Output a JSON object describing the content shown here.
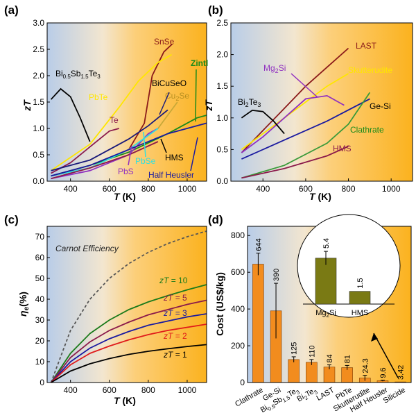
{
  "colors": {
    "bg_left": "#b9cde8",
    "bg_right": "#fbb21e",
    "bar": "#f28c1e",
    "inset_bar": "#7a7a14"
  },
  "chart_data": [
    {
      "panel": "(a)",
      "type": "line",
      "xlabel_var": "T",
      "xlabel_unit": "(K)",
      "ylabel": "zT",
      "xlim": [
        280,
        1100
      ],
      "ylim": [
        0,
        3.0
      ],
      "xticks": [
        "400",
        "600",
        "800",
        "1000"
      ],
      "yticks": [
        "0.0",
        "0.5",
        "1.0",
        "1.5",
        "2.0",
        "2.5",
        "3.0"
      ],
      "series": [
        {
          "name": "SnSe",
          "color": "#8b1a1a",
          "x": [
            300,
            500,
            700,
            780,
            820,
            880,
            923
          ],
          "y": [
            0.1,
            0.25,
            0.6,
            1.1,
            2.0,
            2.45,
            2.6
          ]
        },
        {
          "name": "PbTe",
          "color": "#ffe600",
          "x": [
            300,
            500,
            650,
            750,
            850,
            920
          ],
          "y": [
            0.2,
            0.7,
            1.4,
            1.9,
            2.25,
            2.4
          ]
        },
        {
          "name": "Bi0.5Sb1.5Te3",
          "color": "#000000",
          "x": [
            300,
            350,
            400,
            450,
            500
          ],
          "y": [
            1.55,
            1.75,
            1.6,
            1.2,
            0.75
          ]
        },
        {
          "name": "Te",
          "color": "#8b1a4a",
          "x": [
            300,
            400,
            500,
            600,
            650
          ],
          "y": [
            0.15,
            0.35,
            0.65,
            0.95,
            1.0
          ]
        },
        {
          "name": "BiCuSeO",
          "color": "#1a1a7a",
          "x": [
            300,
            500,
            700,
            800,
            900
          ],
          "y": [
            0.2,
            0.4,
            0.8,
            1.05,
            1.35
          ]
        },
        {
          "name": "Cu2Se",
          "color": "#c8a838",
          "x": [
            300,
            500,
            700,
            850,
            950
          ],
          "y": [
            0.1,
            0.25,
            0.6,
            1.0,
            1.5
          ]
        },
        {
          "name": "Zintl",
          "color": "#1a8a1a",
          "x": [
            300,
            500,
            700,
            900,
            1050,
            1100
          ],
          "y": [
            0.1,
            0.3,
            0.55,
            0.9,
            1.2,
            1.25
          ]
        },
        {
          "name": "PbS",
          "color": "#9030c0",
          "x": [
            300,
            500,
            700,
            800,
            850
          ],
          "y": [
            0.05,
            0.2,
            0.5,
            0.9,
            1.0
          ]
        },
        {
          "name": "PbSe",
          "color": "#30e0e0",
          "x": [
            300,
            500,
            700,
            850
          ],
          "y": [
            0.1,
            0.25,
            0.6,
            1.0
          ]
        },
        {
          "name": "HMS",
          "color": "#8b1a4a",
          "x": [
            300,
            500,
            700,
            850
          ],
          "y": [
            0.05,
            0.25,
            0.5,
            0.75
          ]
        },
        {
          "name": "Half Heusler",
          "color": "#1a1aa0",
          "x": [
            300,
            500,
            700,
            900,
            1100
          ],
          "y": [
            0.1,
            0.3,
            0.6,
            0.9,
            1.1
          ]
        }
      ]
    },
    {
      "panel": "(b)",
      "type": "line",
      "xlabel_var": "T",
      "xlabel_unit": "(K)",
      "ylabel": "zT",
      "xlim": [
        250,
        1100
      ],
      "ylim": [
        0,
        2.5
      ],
      "xticks": [
        "400",
        "600",
        "800",
        "1000"
      ],
      "yticks": [
        "0.0",
        "0.5",
        "1.0",
        "1.5",
        "2.0",
        "2.5"
      ],
      "series": [
        {
          "name": "LAST",
          "color": "#8b1a1a",
          "x": [
            300,
            400,
            500,
            600,
            700,
            800
          ],
          "y": [
            0.45,
            0.8,
            1.15,
            1.5,
            1.8,
            2.1
          ]
        },
        {
          "name": "Skutterudite",
          "color": "#ffe600",
          "x": [
            300,
            400,
            500,
            600,
            700,
            800
          ],
          "y": [
            0.5,
            0.75,
            1.0,
            1.25,
            1.5,
            1.7
          ]
        },
        {
          "name": "Mg2Si",
          "color": "#9030c0",
          "x": [
            300,
            400,
            500,
            600,
            700,
            780
          ],
          "y": [
            0.45,
            0.7,
            1.0,
            1.3,
            1.35,
            1.2
          ]
        },
        {
          "name": "Bi2Te3",
          "color": "#000000",
          "x": [
            300,
            350,
            400,
            450,
            500
          ],
          "y": [
            1.0,
            1.12,
            1.1,
            0.95,
            0.75
          ]
        },
        {
          "name": "Ge-Si",
          "color": "#1a1aa0",
          "x": [
            300,
            500,
            700,
            900
          ],
          "y": [
            0.35,
            0.65,
            0.95,
            1.3
          ]
        },
        {
          "name": "Clathrate",
          "color": "#3a9a3a",
          "x": [
            300,
            500,
            700,
            800,
            900
          ],
          "y": [
            0.05,
            0.25,
            0.6,
            0.9,
            1.4
          ]
        },
        {
          "name": "HMS",
          "color": "#8b1a4a",
          "x": [
            300,
            500,
            700,
            800
          ],
          "y": [
            0.05,
            0.2,
            0.4,
            0.55
          ]
        }
      ]
    },
    {
      "panel": "(c)",
      "type": "line",
      "xlabel_var": "T",
      "xlabel_unit": "(K)",
      "ylabel_var": "η",
      "ylabel_sub": "e",
      "ylabel_unit": "(%)",
      "xlim": [
        280,
        1100
      ],
      "ylim": [
        0,
        75
      ],
      "xticks": [
        "400",
        "600",
        "800",
        "1000"
      ],
      "yticks": [
        "0",
        "10",
        "20",
        "30",
        "40",
        "50",
        "60",
        "70"
      ],
      "carnot_label": "Carnot Efficiency",
      "series": [
        {
          "name": "Carnot",
          "color": "#555555",
          "dashed": true,
          "x": [
            300,
            400,
            500,
            600,
            700,
            800,
            900,
            1000,
            1100
          ],
          "y": [
            0,
            25,
            40,
            50,
            57.1,
            62.5,
            66.7,
            70,
            72.7
          ]
        },
        {
          "name": "zT = 10",
          "color": "#1a7a1a",
          "x": [
            300,
            400,
            500,
            600,
            700,
            800,
            900,
            1000,
            1100
          ],
          "y": [
            0,
            14,
            23.5,
            30,
            35,
            38.7,
            41.7,
            44.5,
            47
          ]
        },
        {
          "name": "zT = 5",
          "color": "#8b1a4a",
          "x": [
            300,
            400,
            500,
            600,
            700,
            800,
            900,
            1000,
            1100
          ],
          "y": [
            0,
            12,
            19.5,
            25,
            29,
            32.5,
            35,
            37.5,
            39.5
          ]
        },
        {
          "name": "zT = 3",
          "color": "#1a1aa0",
          "x": [
            300,
            400,
            500,
            600,
            700,
            800,
            900,
            1000,
            1100
          ],
          "y": [
            0,
            10,
            16.5,
            21,
            24.5,
            27.5,
            29.5,
            31.5,
            33
          ]
        },
        {
          "name": "zT = 2",
          "color": "#e01a1a",
          "x": [
            300,
            400,
            500,
            600,
            700,
            800,
            900,
            1000,
            1100
          ],
          "y": [
            0,
            8.5,
            14,
            17.5,
            20.5,
            23,
            25,
            26.5,
            28
          ]
        },
        {
          "name": "zT = 1",
          "color": "#000000",
          "x": [
            300,
            400,
            500,
            600,
            700,
            800,
            900,
            1000,
            1100
          ],
          "y": [
            0,
            5.5,
            9,
            11.5,
            13.5,
            15,
            16.2,
            17.3,
            18.2
          ]
        }
      ]
    },
    {
      "panel": "(d)",
      "type": "bar",
      "ylabel": "Cost (US$/kg)",
      "ylim": [
        0,
        850
      ],
      "yticks": [
        "0",
        "200",
        "400",
        "600",
        "800"
      ],
      "categories": [
        "Clathrate",
        "Ge-Si",
        "Bi0.5Sb1.5Te3",
        "Bi2Te3",
        "LAST",
        "PbTe",
        "Skutterudite",
        "Half Heusler",
        "Silicide"
      ],
      "values": [
        644,
        390,
        125,
        110,
        84,
        81,
        24.3,
        9.6,
        3.42
      ],
      "value_labels": [
        "644",
        "390",
        "125",
        "110",
        "84",
        "81",
        "24.3",
        "9.6",
        "3.42"
      ],
      "errors": [
        60,
        150,
        15,
        15,
        12,
        12,
        15,
        3,
        0
      ],
      "inset": {
        "categories": [
          "Mg2Si",
          "HMS"
        ],
        "values": [
          5.4,
          1.5
        ],
        "value_labels": [
          "5.4",
          "1.5"
        ],
        "errors": [
          0.8,
          0
        ],
        "ylim": [
          0,
          8
        ]
      }
    }
  ],
  "annotations": {
    "a": {
      "SnSe": "SnSe",
      "PbTe": "PbTe",
      "Te": "Te",
      "BiCuSeO": "BiCuSeO",
      "Zintl": "Zintl",
      "Cu2Se_main": "Cu",
      "Cu2Se_sub": "2",
      "Cu2Se_tail": "Se",
      "Bi_main": "Bi",
      "Bi_s1": "0.5",
      "Bi_sb": "Sb",
      "Bi_s2": "1.5",
      "Bi_te": "Te",
      "Bi_s3": "3",
      "PbS": "PbS",
      "PbSe": "PbSe",
      "HMS": "HMS",
      "HalfHeusler": "Half Heusler"
    },
    "b": {
      "LAST": "LAST",
      "Mg_main": "Mg",
      "Mg_sub": "2",
      "Mg_tail": "Si",
      "Skutterudite": "Skutterudite",
      "Bi_main": "Bi",
      "Bi_sub": "2",
      "Bi_tail": "Te",
      "Bi_sub2": "3",
      "GeSi": "Ge-Si",
      "Clathrate": "Clathrate",
      "HMS": "HMS"
    },
    "c": {
      "zT10": "= 10",
      "zT5": "= 5",
      "zT3": "= 3",
      "zT2": "= 2",
      "zT1": "= 1",
      "zt": "zT"
    }
  }
}
